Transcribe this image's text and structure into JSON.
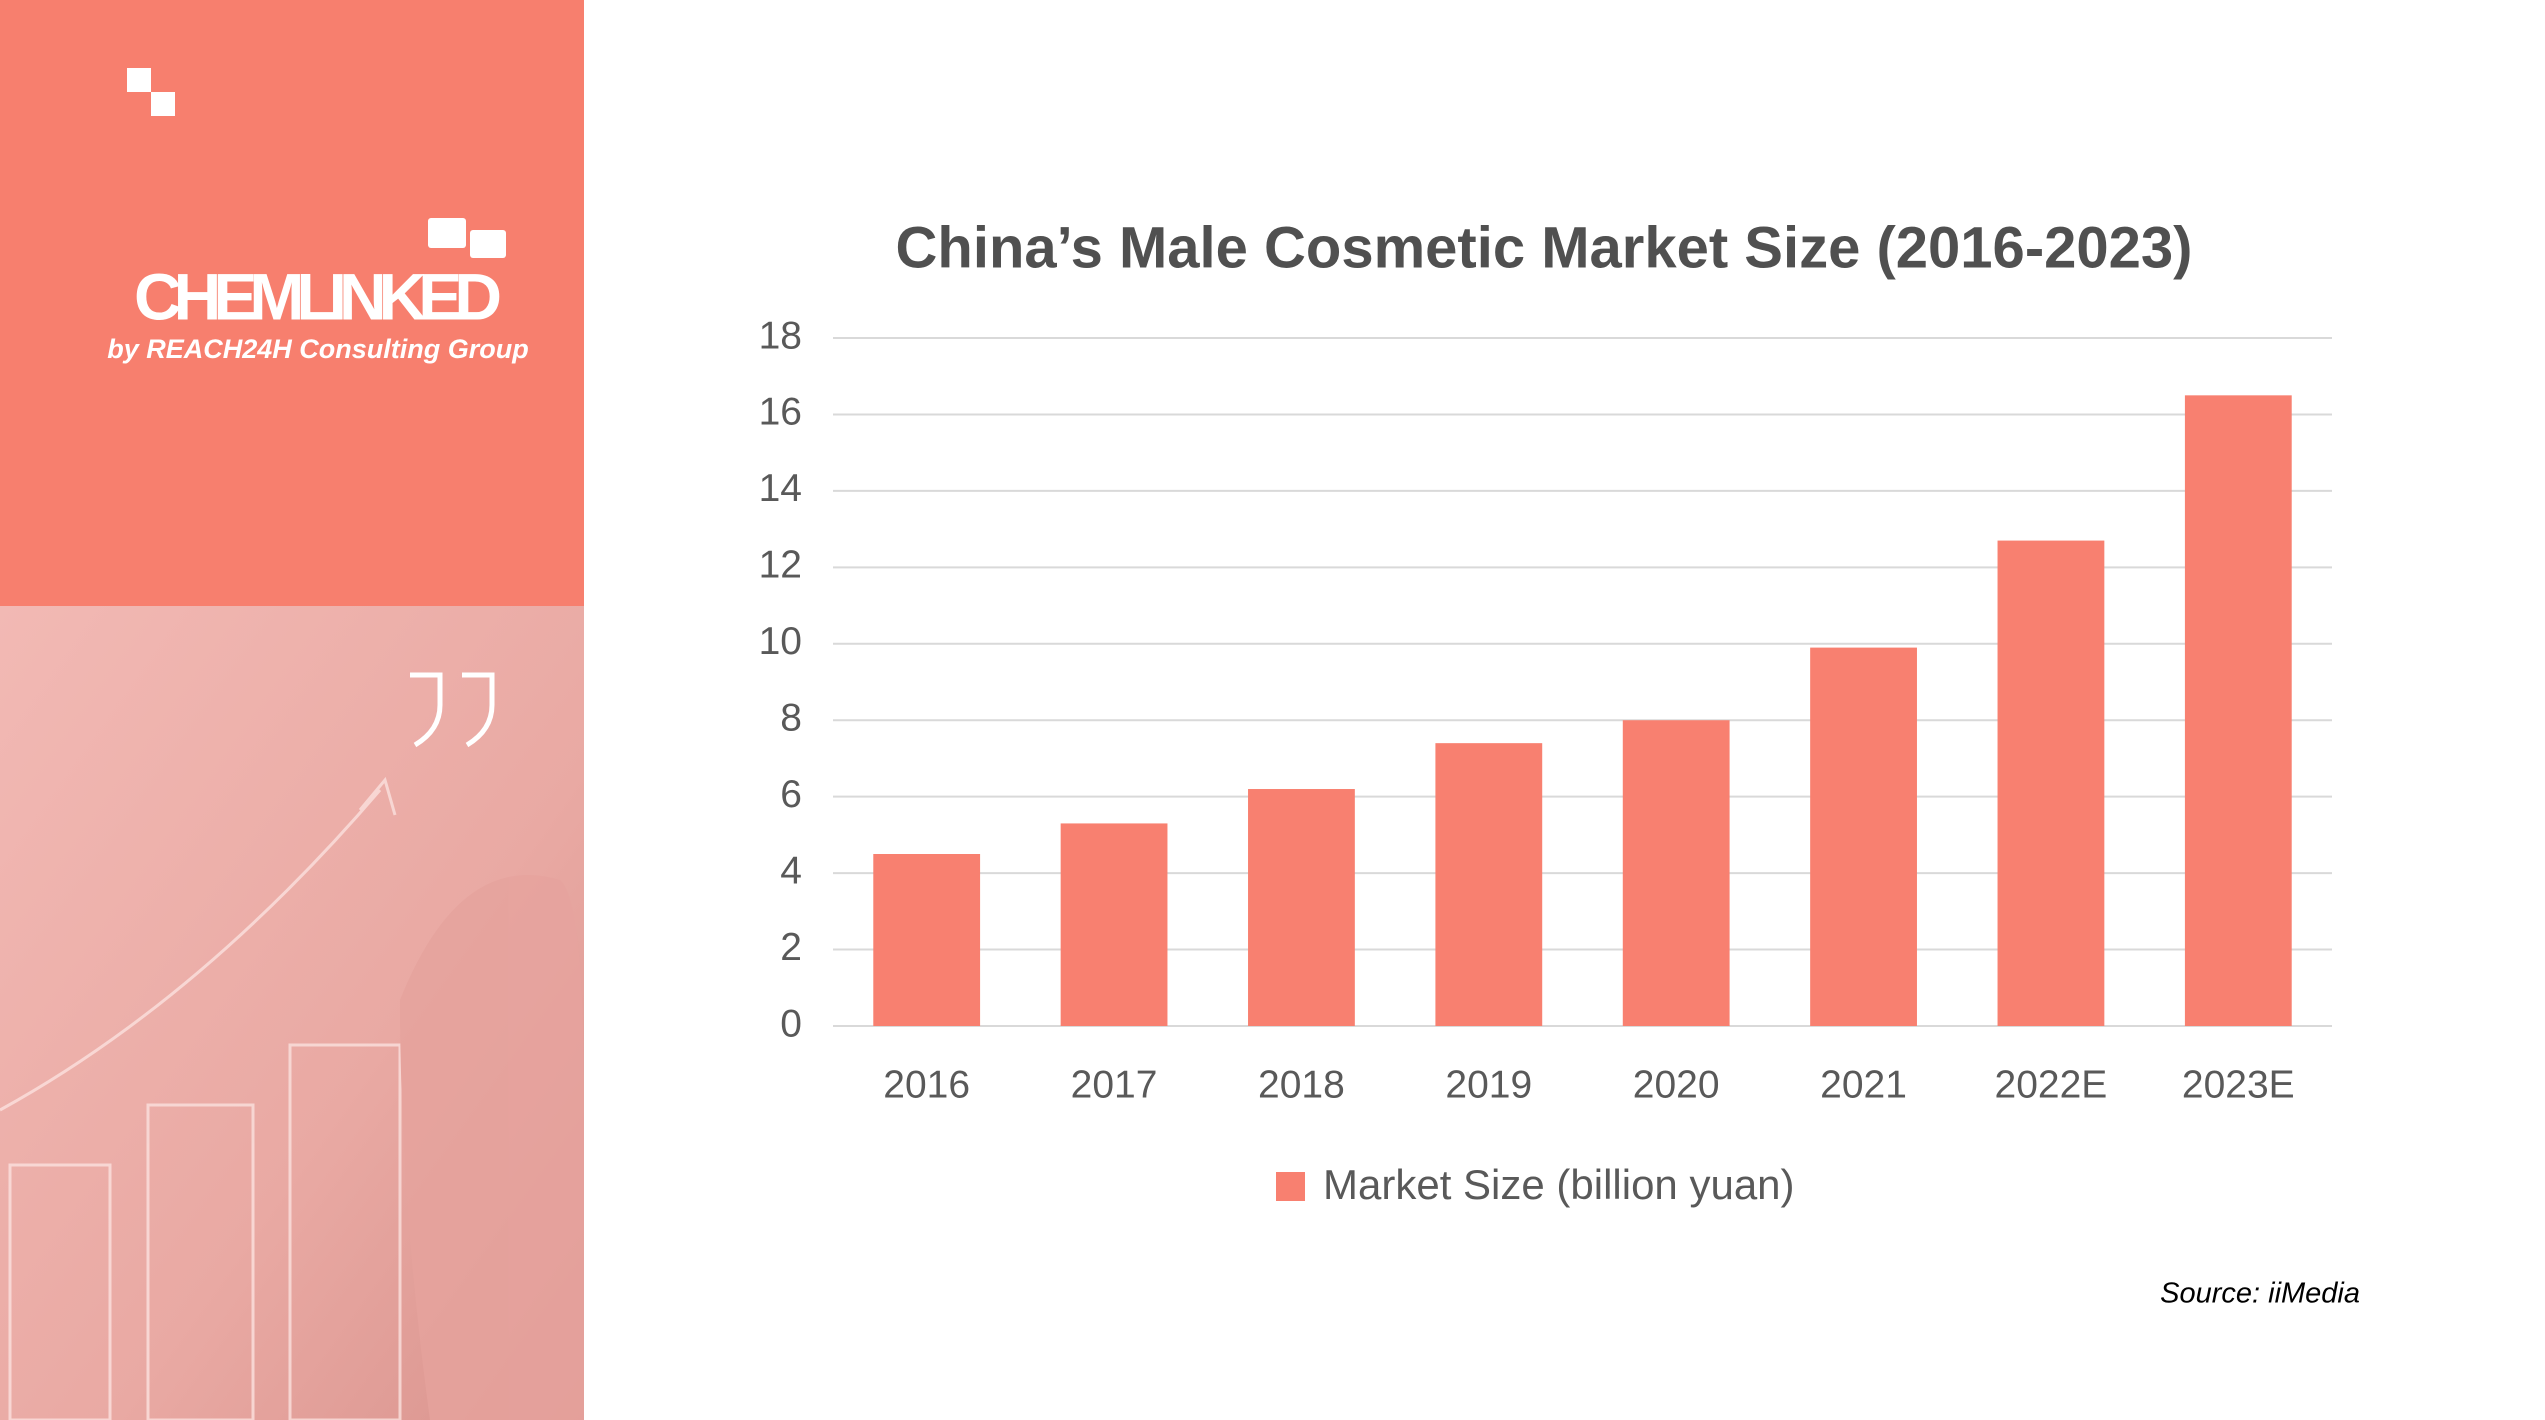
{
  "logo": {
    "name": "CHEMLINKED",
    "tagline": "by REACH24H Consulting Group"
  },
  "chart_data": {
    "type": "bar",
    "title": "China’s Male Cosmetic Market Size (2016-2023)",
    "categories": [
      "2016",
      "2017",
      "2018",
      "2019",
      "2020",
      "2021",
      "2022E",
      "2023E"
    ],
    "series": [
      {
        "name": "Market Size (billion yuan)",
        "color": "#f88070",
        "values": [
          4.5,
          5.3,
          6.2,
          7.4,
          8.0,
          9.9,
          12.7,
          16.5
        ]
      }
    ],
    "ylim": [
      0,
      18
    ],
    "yticks": [
      0,
      2,
      4,
      6,
      8,
      10,
      12,
      14,
      16,
      18
    ],
    "grid": true,
    "legend": "bottom",
    "source": "Source:  iiMedia"
  }
}
